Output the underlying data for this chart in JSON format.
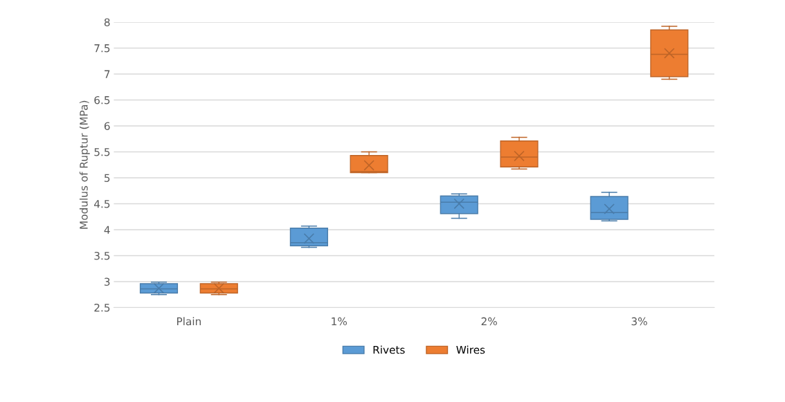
{
  "chart_data": {
    "type": "box",
    "ylabel": "Modulus of Ruptur (MPa)",
    "categories": [
      "Plain",
      "1%",
      "2%",
      "3%"
    ],
    "ylim": [
      2.5,
      8
    ],
    "yticks": [
      2.5,
      3,
      3.5,
      4,
      4.5,
      5,
      5.5,
      6,
      6.5,
      7,
      7.5,
      8
    ],
    "grid": "y",
    "legend": "bottom",
    "series": [
      {
        "name": "Rivets",
        "color": "#5b9bd5",
        "boxes": [
          {
            "low": 2.75,
            "q1": 2.78,
            "median": 2.86,
            "q3": 2.96,
            "high": 2.99,
            "mean": 2.87
          },
          {
            "low": 3.66,
            "q1": 3.69,
            "median": 3.75,
            "q3": 4.03,
            "high": 4.07,
            "mean": 3.83
          },
          {
            "low": 4.22,
            "q1": 4.31,
            "median": 4.53,
            "q3": 4.65,
            "high": 4.69,
            "mean": 4.5
          },
          {
            "low": 4.17,
            "q1": 4.2,
            "median": 4.33,
            "q3": 4.64,
            "high": 4.72,
            "mean": 4.4
          }
        ]
      },
      {
        "name": "Wires",
        "color": "#ed7d31",
        "boxes": [
          {
            "low": 2.75,
            "q1": 2.78,
            "median": 2.86,
            "q3": 2.96,
            "high": 2.99,
            "mean": 2.87
          },
          {
            "low": 5.1,
            "q1": 5.1,
            "median": 5.12,
            "q3": 5.43,
            "high": 5.5,
            "mean": 5.24
          },
          {
            "low": 5.17,
            "q1": 5.21,
            "median": 5.4,
            "q3": 5.71,
            "high": 5.78,
            "mean": 5.42
          },
          {
            "low": 6.9,
            "q1": 6.95,
            "median": 7.38,
            "q3": 7.85,
            "high": 7.92,
            "mean": 7.4
          }
        ]
      }
    ]
  }
}
